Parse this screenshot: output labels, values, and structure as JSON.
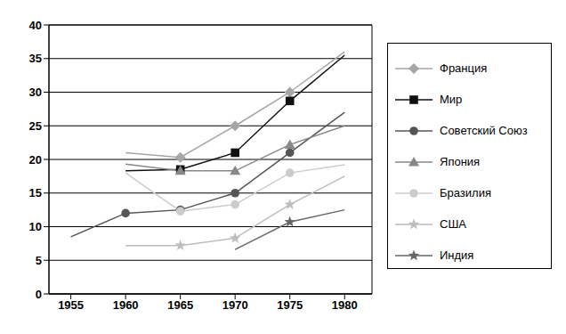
{
  "chart_data": {
    "type": "line",
    "x": [
      1955,
      1960,
      1965,
      1970,
      1975,
      1980
    ],
    "series": [
      {
        "name": "Франция",
        "color": "#a6a6a6",
        "marker": "diamond",
        "values": [
          null,
          21,
          20.3,
          25,
          30,
          36
        ]
      },
      {
        "name": "Мир",
        "color": "#111111",
        "marker": "square",
        "values": [
          null,
          18.3,
          18.5,
          21,
          28.7,
          35.5
        ]
      },
      {
        "name": "Советский Союз",
        "color": "#555555",
        "marker": "circle",
        "values": [
          8.5,
          12,
          12.5,
          15,
          21,
          27
        ]
      },
      {
        "name": "Япония",
        "color": "#888888",
        "marker": "triangle",
        "values": [
          null,
          19.3,
          18.3,
          18.3,
          22.2,
          25
        ]
      },
      {
        "name": "Бразилия",
        "color": "#cccccc",
        "marker": "circle",
        "values": [
          null,
          18,
          12.3,
          13.3,
          18,
          19.2
        ]
      },
      {
        "name": "США",
        "color": "#bdbdbd",
        "marker": "star",
        "values": [
          null,
          7.2,
          7.2,
          8.3,
          13.3,
          17.5
        ]
      },
      {
        "name": "Индия",
        "color": "#666666",
        "marker": "star",
        "values": [
          null,
          null,
          null,
          6.6,
          10.7,
          12.5
        ]
      }
    ],
    "xlim": [
      1953,
      1982.5
    ],
    "xticks": [
      1955,
      1960,
      1965,
      1970,
      1975,
      1980
    ],
    "ylim": [
      0,
      40
    ],
    "yticks": [
      0,
      5,
      10,
      15,
      20,
      25,
      30,
      35,
      40
    ],
    "grid": true,
    "legend": "right"
  }
}
